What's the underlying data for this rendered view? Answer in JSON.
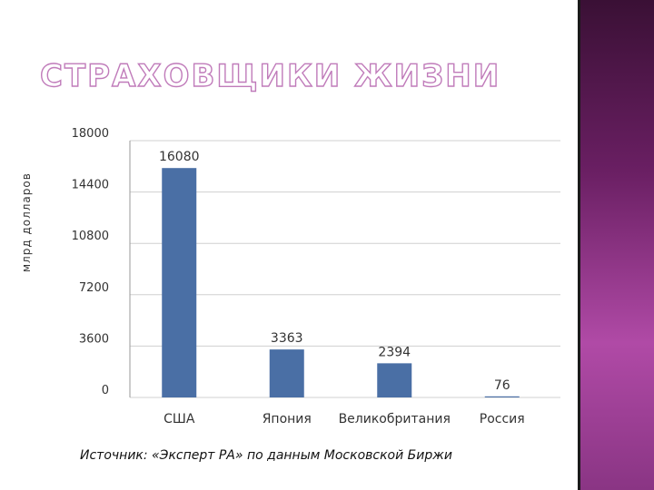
{
  "slide": {
    "title": "СТРАХОВЩИКИ ЖИЗНИ",
    "source": "Источник: «Эксперт РА» по данным Московской Биржи"
  },
  "colors": {
    "bar": "#4a6fa5",
    "grid": "#d0d0d0",
    "title_outline": "#c07bba",
    "side_panel": "#8a3584"
  },
  "chart_data": {
    "type": "bar",
    "title": "",
    "xlabel": "",
    "ylabel": "млрд долларов",
    "ylim": [
      0,
      18000
    ],
    "yticks": [
      "18000",
      "14400",
      "10800",
      "7200",
      "3600",
      "0"
    ],
    "grid": true,
    "legend": "none",
    "categories": [
      "США",
      "Япония",
      "Великобритания",
      "Россия"
    ],
    "values": [
      16080,
      3363,
      2394,
      76
    ],
    "data_labels": [
      "16080",
      "3363",
      "2394",
      "76"
    ]
  }
}
